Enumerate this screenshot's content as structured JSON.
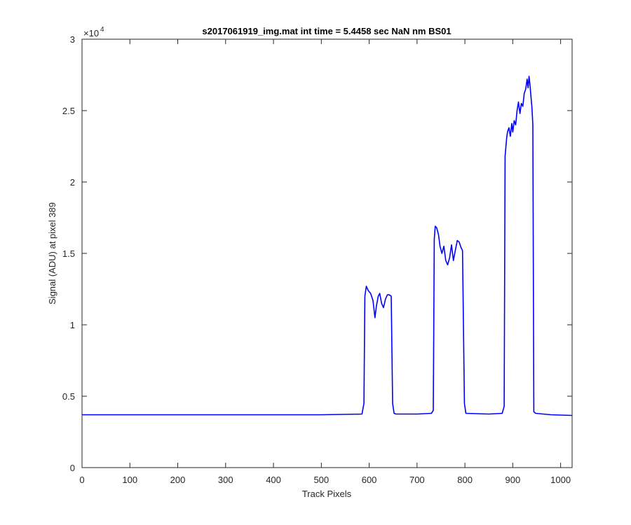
{
  "chart_data": {
    "type": "line",
    "title": "s2017061919_img.mat int time = 5.4458 sec  NaN nm BS01",
    "xlabel": "Track Pixels",
    "ylabel": "Signal (ADU) at pixel 389",
    "y_exponent": "4",
    "xlim": [
      0,
      1024
    ],
    "ylim": [
      0,
      30000
    ],
    "grid": false,
    "legend": "none",
    "x_ticks": [
      0,
      100,
      200,
      300,
      400,
      500,
      600,
      700,
      800,
      900,
      1000
    ],
    "x_tick_labels": [
      "0",
      "100",
      "200",
      "300",
      "400",
      "500",
      "600",
      "700",
      "800",
      "900",
      "1000"
    ],
    "y_ticks": [
      0,
      5000,
      10000,
      15000,
      20000,
      25000,
      30000
    ],
    "y_tick_labels": [
      "0",
      "0.5",
      "1",
      "1.5",
      "2",
      "2.5",
      "3"
    ],
    "series": [
      {
        "color": "#0000ff",
        "x": [
          0,
          100,
          200,
          300,
          400,
          500,
          585,
          589,
          591,
          594,
          598,
          603,
          608,
          612,
          615,
          619,
          622,
          626,
          630,
          634,
          638,
          642,
          646,
          649,
          652,
          656,
          700,
          730,
          734,
          736,
          738,
          741,
          745,
          748,
          752,
          756,
          760,
          764,
          768,
          772,
          776,
          780,
          784,
          788,
          792,
          795,
          799,
          802,
          850,
          878,
          882,
          884,
          887,
          889,
          892,
          895,
          898,
          900,
          903,
          906,
          909,
          912,
          915,
          918,
          921,
          924,
          927,
          930,
          932,
          934,
          936,
          938,
          940,
          942,
          944,
          948,
          980,
          1024
        ],
        "y": [
          3700,
          3700,
          3700,
          3700,
          3700,
          3700,
          3750,
          4500,
          12000,
          12700,
          12400,
          12200,
          11700,
          10500,
          11300,
          12000,
          12200,
          11500,
          11200,
          11800,
          12100,
          12100,
          12000,
          4500,
          3800,
          3750,
          3750,
          3800,
          4000,
          16000,
          16900,
          16800,
          16300,
          15500,
          15000,
          15500,
          14500,
          14200,
          14700,
          15600,
          14500,
          15200,
          15900,
          15800,
          15400,
          15200,
          4500,
          3800,
          3750,
          3800,
          4300,
          21800,
          23000,
          23500,
          23800,
          23200,
          24100,
          23500,
          24300,
          24000,
          25000,
          25600,
          24800,
          25500,
          25300,
          26200,
          26500,
          27200,
          26600,
          27400,
          26800,
          26000,
          25200,
          24000,
          3900,
          3800,
          3700,
          3650
        ]
      }
    ]
  }
}
